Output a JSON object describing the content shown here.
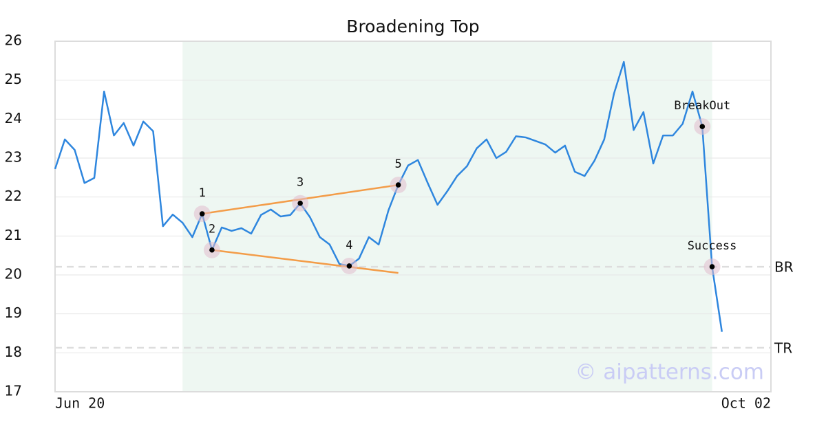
{
  "chart_data": {
    "type": "line",
    "title": "Broadening Top",
    "categories": [
      "Jun 20",
      null,
      null,
      null,
      null,
      null,
      null,
      null,
      null,
      null,
      null,
      null,
      null,
      null,
      null,
      null,
      null,
      null,
      null,
      null,
      null,
      null,
      null,
      null,
      null,
      null,
      null,
      null,
      null,
      null,
      null,
      null,
      null,
      null,
      null,
      null,
      null,
      null,
      null,
      null,
      null,
      null,
      null,
      null,
      null,
      null,
      null,
      null,
      null,
      null,
      null,
      null,
      null,
      null,
      null,
      null,
      null,
      null,
      null,
      null,
      null,
      null,
      null,
      null,
      null,
      null,
      null,
      null,
      null,
      null,
      null,
      null,
      null,
      "Oct 02"
    ],
    "values": [
      22.72,
      23.48,
      23.21,
      22.36,
      22.49,
      24.71,
      23.58,
      23.9,
      23.32,
      23.94,
      23.69,
      21.25,
      21.55,
      21.34,
      20.97,
      21.57,
      20.64,
      21.22,
      21.13,
      21.2,
      21.06,
      21.54,
      21.68,
      21.5,
      21.54,
      21.84,
      21.48,
      20.97,
      20.78,
      20.28,
      20.23,
      20.42,
      20.97,
      20.78,
      21.66,
      22.31,
      22.81,
      22.95,
      22.36,
      21.8,
      22.15,
      22.54,
      22.79,
      23.25,
      23.48,
      23.0,
      23.16,
      23.56,
      23.53,
      23.44,
      23.35,
      23.14,
      23.32,
      22.65,
      22.54,
      22.93,
      23.48,
      24.66,
      25.47,
      23.72,
      24.18,
      22.86,
      23.58,
      23.58,
      23.88,
      24.71,
      23.81,
      20.21,
      18.54,
      null,
      null,
      null,
      null,
      null
    ],
    "color": "#2e86de",
    "ylim": [
      17,
      26
    ],
    "yticks": [
      17,
      18,
      19,
      20,
      21,
      22,
      23,
      24,
      25,
      26
    ],
    "grid": true,
    "highlight": [
      13,
      67
    ],
    "points": [
      {
        "label": "1",
        "x": 15,
        "y": 21.57
      },
      {
        "label": "2",
        "x": 16,
        "y": 20.64
      },
      {
        "label": "3",
        "x": 25,
        "y": 21.84
      },
      {
        "label": "4",
        "x": 30,
        "y": 20.23
      },
      {
        "label": "5",
        "x": 35,
        "y": 22.31
      },
      {
        "label": "BreakOut",
        "x": 66,
        "y": 23.81
      },
      {
        "label": "Success",
        "x": 67,
        "y": 20.21
      }
    ],
    "trendlines": [
      {
        "x": [
          15,
          35
        ],
        "y": [
          21.57,
          22.31
        ],
        "color": "#f39c48"
      },
      {
        "x": [
          16,
          35
        ],
        "y": [
          20.64,
          20.05
        ],
        "color": "#f39c48"
      }
    ],
    "levels": [
      {
        "label": "BR",
        "value": 20.21
      },
      {
        "label": "TR",
        "value": 18.13
      }
    ],
    "watermark": "© aipatterns.com"
  }
}
